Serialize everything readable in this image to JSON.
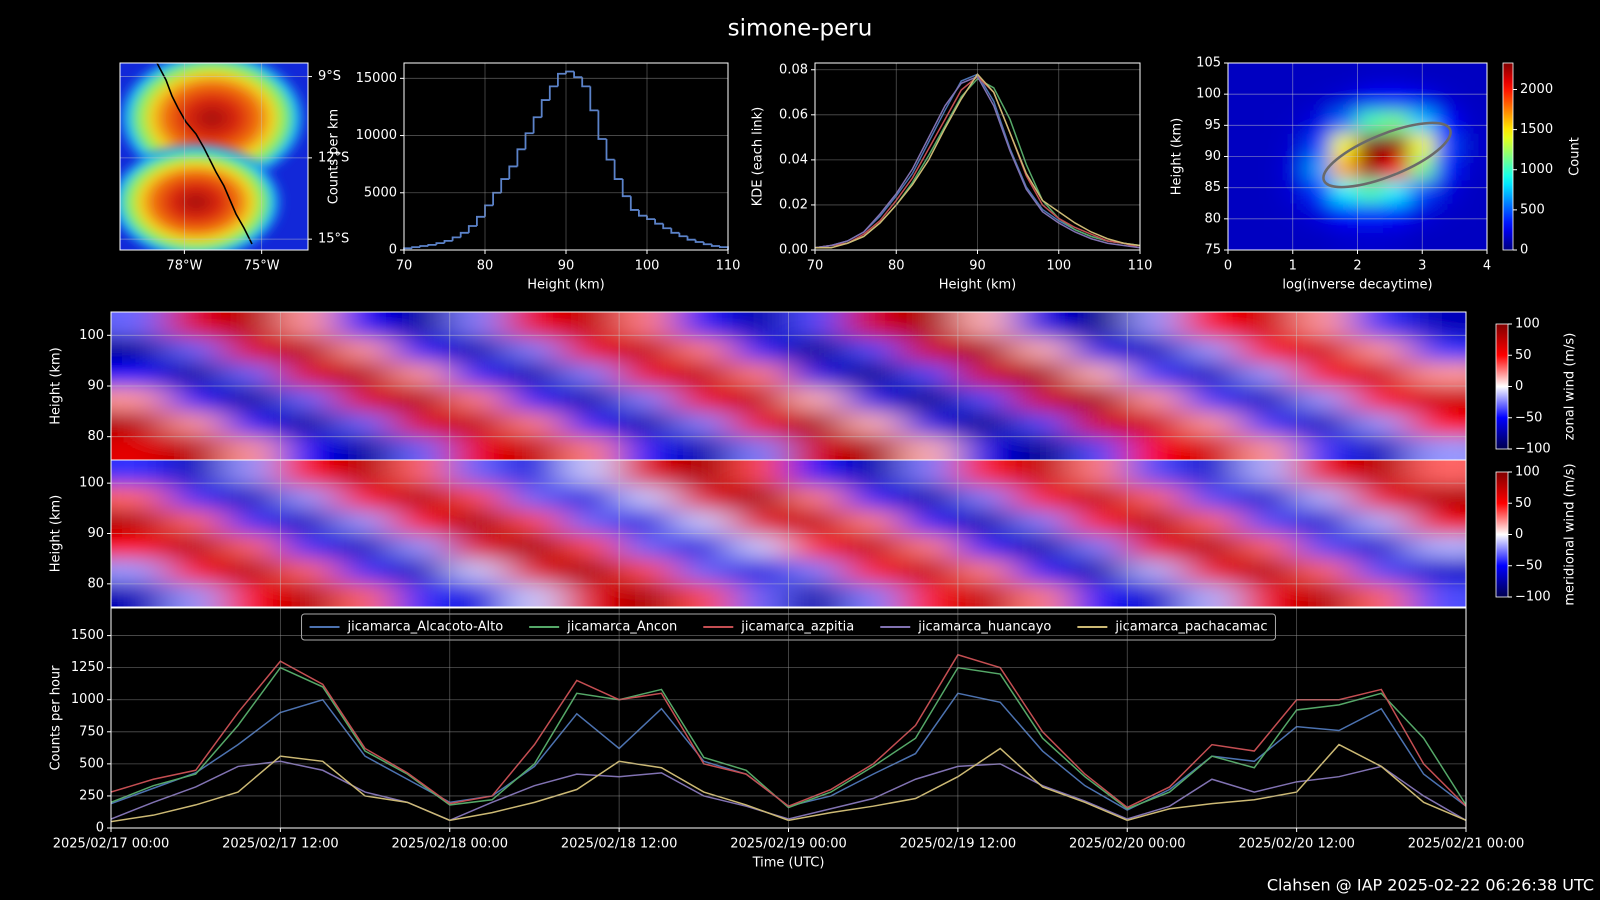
{
  "title": "simone-peru",
  "footer": "Clahsen @ IAP 2025-02-22 06:26:38 UTC",
  "chart_data": [
    {
      "type": "map",
      "xlim": [
        -80.5,
        -73.2
      ],
      "ylim": [
        -15.4,
        -8.5
      ],
      "xticks": [
        {
          "value": -78,
          "label": "78°W"
        },
        {
          "value": -75,
          "label": "75°W"
        }
      ],
      "yticks": [
        {
          "value": -15,
          "label": "15°S"
        },
        {
          "value": -12,
          "label": "12°S"
        },
        {
          "value": -9,
          "label": "9°S"
        }
      ],
      "grid": true
    },
    {
      "type": "histogram",
      "xlabel": "Height (km)",
      "ylabel": "Counts per km",
      "color": "#5b82c9",
      "bins": [
        70,
        71,
        72,
        73,
        74,
        75,
        76,
        77,
        78,
        79,
        80,
        81,
        82,
        83,
        84,
        85,
        86,
        87,
        88,
        89,
        90,
        91,
        92,
        93,
        94,
        95,
        96,
        97,
        98,
        99,
        100,
        101,
        102,
        103,
        104,
        105,
        106,
        107,
        108,
        109,
        110
      ],
      "counts": [
        150,
        250,
        350,
        450,
        600,
        800,
        1100,
        1500,
        2100,
        2900,
        3900,
        5000,
        6200,
        7300,
        8800,
        10200,
        11600,
        13100,
        14300,
        15400,
        15600,
        15100,
        14300,
        12200,
        9700,
        7900,
        6200,
        4700,
        3500,
        3000,
        2700,
        2300,
        1900,
        1500,
        1200,
        900,
        700,
        500,
        350,
        250
      ],
      "xlim": [
        70,
        110
      ],
      "ylim": [
        0,
        16340
      ],
      "xticks": [
        70,
        80,
        90,
        100,
        110
      ],
      "yticks": [
        0,
        5000,
        10000,
        15000
      ],
      "grid": true
    },
    {
      "type": "line",
      "xlabel": "Height (km)",
      "ylabel": "KDE (each link)",
      "x": [
        70,
        72,
        74,
        76,
        78,
        80,
        82,
        84,
        86,
        88,
        90,
        92,
        94,
        96,
        98,
        100,
        102,
        104,
        106,
        108,
        110
      ],
      "series": [
        {
          "color": "#4c72b0",
          "values": [
            0.001,
            0.002,
            0.004,
            0.008,
            0.015,
            0.024,
            0.034,
            0.048,
            0.062,
            0.075,
            0.078,
            0.066,
            0.045,
            0.028,
            0.018,
            0.013,
            0.009,
            0.006,
            0.004,
            0.003,
            0.002
          ]
        },
        {
          "color": "#55a868",
          "values": [
            0.001,
            0.002,
            0.003,
            0.006,
            0.012,
            0.02,
            0.03,
            0.042,
            0.055,
            0.068,
            0.076,
            0.072,
            0.058,
            0.038,
            0.022,
            0.014,
            0.009,
            0.006,
            0.004,
            0.003,
            0.002
          ]
        },
        {
          "color": "#c44e52",
          "values": [
            0.001,
            0.002,
            0.003,
            0.007,
            0.013,
            0.022,
            0.032,
            0.045,
            0.058,
            0.071,
            0.077,
            0.07,
            0.052,
            0.033,
            0.02,
            0.014,
            0.01,
            0.007,
            0.004,
            0.003,
            0.001
          ]
        },
        {
          "color": "#8172b2",
          "values": [
            0.001,
            0.002,
            0.004,
            0.008,
            0.016,
            0.025,
            0.036,
            0.05,
            0.064,
            0.074,
            0.077,
            0.064,
            0.044,
            0.027,
            0.017,
            0.012,
            0.008,
            0.005,
            0.003,
            0.002,
            0.001
          ]
        },
        {
          "color": "#ccb974",
          "values": [
            0.001,
            0.001,
            0.003,
            0.006,
            0.012,
            0.02,
            0.029,
            0.04,
            0.054,
            0.067,
            0.078,
            0.07,
            0.052,
            0.034,
            0.022,
            0.017,
            0.012,
            0.008,
            0.005,
            0.003,
            0.002
          ]
        }
      ],
      "xlim": [
        70,
        110
      ],
      "ylim": [
        0,
        0.083
      ],
      "xticks": [
        70,
        80,
        90,
        100,
        110
      ],
      "yticks": [
        {
          "value": 0,
          "label": "0.00"
        },
        {
          "value": 0.02,
          "label": "0.02"
        },
        {
          "value": 0.04,
          "label": "0.04"
        },
        {
          "value": 0.06,
          "label": "0.06"
        },
        {
          "value": 0.08,
          "label": "0.08"
        }
      ],
      "grid": true
    },
    {
      "type": "heatmap",
      "xlabel": "log(inverse decaytime)",
      "ylabel": "Height (km)",
      "clabel": "Count",
      "cmap": "jet",
      "z": [
        [
          150,
          150,
          150,
          150,
          170,
          180,
          170,
          150,
          150,
          150
        ],
        [
          150,
          150,
          160,
          210,
          300,
          350,
          300,
          210,
          160,
          150
        ],
        [
          150,
          150,
          190,
          400,
          850,
          1050,
          850,
          450,
          210,
          150
        ],
        [
          150,
          150,
          210,
          650,
          1650,
          2250,
          2050,
          1150,
          350,
          160
        ],
        [
          150,
          150,
          180,
          450,
          1450,
          2330,
          2300,
          1450,
          450,
          170
        ],
        [
          150,
          150,
          160,
          230,
          550,
          1050,
          1150,
          750,
          300,
          160
        ],
        [
          150,
          150,
          150,
          160,
          200,
          270,
          300,
          250,
          180,
          150
        ],
        [
          150,
          150,
          150,
          150,
          150,
          160,
          160,
          150,
          150,
          150
        ]
      ],
      "xlim": [
        0,
        4
      ],
      "ylim": [
        75,
        105
      ],
      "xticks": [
        0,
        1,
        2,
        3,
        4
      ],
      "yticks": [
        75,
        80,
        85,
        90,
        95,
        100,
        105
      ],
      "clim": [
        0,
        2330
      ],
      "cticks": [
        0,
        500,
        1000,
        1500,
        2000
      ],
      "grid": true
    },
    {
      "type": "heatmap",
      "ylabel": "Height (km)",
      "clabel": "zonal wind (m/s)",
      "cmap": "seismic",
      "z": [
        [
          60,
          80,
          20,
          -50,
          -80,
          -30,
          55,
          75,
          25,
          -45,
          -75,
          -25,
          65,
          85,
          15,
          -55,
          -85,
          -35,
          50,
          70,
          20,
          -40,
          -70,
          -20
        ],
        [
          80,
          20,
          -50,
          -80,
          -30,
          60,
          75,
          25,
          -45,
          -75,
          -25,
          55,
          85,
          15,
          -55,
          -85,
          -35,
          65,
          70,
          20,
          -40,
          -70,
          -20,
          50
        ],
        [
          20,
          -50,
          -80,
          -30,
          60,
          80,
          25,
          -45,
          -75,
          -25,
          55,
          75,
          15,
          -55,
          -85,
          -35,
          65,
          85,
          20,
          -40,
          -70,
          -20,
          50,
          70
        ],
        [
          -50,
          -80,
          -30,
          60,
          80,
          20,
          -45,
          -75,
          -25,
          55,
          75,
          25,
          -55,
          -85,
          -35,
          65,
          85,
          15,
          -40,
          -70,
          -20,
          50,
          70,
          20
        ],
        [
          -80,
          -30,
          60,
          80,
          20,
          -50,
          -75,
          -25,
          55,
          75,
          25,
          -45,
          -85,
          -35,
          65,
          85,
          15,
          -55,
          -70,
          -20,
          50,
          70,
          20,
          -40
        ],
        [
          -30,
          60,
          80,
          20,
          -50,
          -80,
          -25,
          55,
          75,
          25,
          -45,
          -75,
          -35,
          65,
          85,
          15,
          -55,
          -85,
          -20,
          50,
          70,
          20,
          -40,
          -70
        ]
      ],
      "xlim": [
        "2025/02/17 00:00",
        "2025/02/21 00:00"
      ],
      "ylim": [
        75.4,
        104.6
      ],
      "yticks": [
        80,
        90,
        100
      ],
      "clim": [
        -100,
        100
      ],
      "cticks": [
        {
          "value": -100,
          "label": "−100"
        },
        {
          "value": -50,
          "label": "−50"
        },
        0,
        50,
        100
      ],
      "grid": true
    },
    {
      "type": "heatmap",
      "ylabel": "Height (km)",
      "clabel": "meridional wind (m/s)",
      "cmap": "seismic",
      "z": [
        [
          -70,
          -20,
          50,
          80,
          30,
          -40,
          -60,
          -10,
          60,
          85,
          35,
          -30,
          -75,
          -25,
          45,
          75,
          25,
          -45,
          -65,
          -15,
          55,
          80,
          30,
          -35
        ],
        [
          -20,
          50,
          80,
          30,
          -40,
          -70,
          -10,
          60,
          85,
          35,
          -30,
          -60,
          -25,
          45,
          75,
          25,
          -45,
          -75,
          -15,
          55,
          80,
          30,
          -35,
          -65
        ],
        [
          50,
          80,
          30,
          -40,
          -70,
          -20,
          60,
          85,
          35,
          -30,
          -60,
          -10,
          45,
          75,
          25,
          -45,
          -75,
          -25,
          55,
          80,
          30,
          -35,
          -65,
          -15
        ],
        [
          80,
          30,
          -40,
          -70,
          -20,
          50,
          85,
          35,
          -30,
          -60,
          -10,
          60,
          75,
          25,
          -45,
          -75,
          -25,
          45,
          80,
          30,
          -35,
          -65,
          -15,
          55
        ],
        [
          30,
          -40,
          -70,
          -20,
          50,
          80,
          35,
          -30,
          -60,
          -10,
          60,
          85,
          25,
          -45,
          -75,
          -25,
          45,
          75,
          30,
          -35,
          -65,
          -15,
          55,
          80
        ],
        [
          -40,
          -70,
          -20,
          50,
          80,
          30,
          -30,
          -60,
          -10,
          60,
          85,
          35,
          -45,
          -75,
          -25,
          45,
          75,
          25,
          -35,
          -65,
          -15,
          55,
          80,
          30
        ]
      ],
      "xlim": [
        "2025/02/17 00:00",
        "2025/02/21 00:00"
      ],
      "ylim": [
        75.4,
        104.6
      ],
      "yticks": [
        80,
        90,
        100
      ],
      "clim": [
        -100,
        100
      ],
      "cticks": [
        {
          "value": -100,
          "label": "−100"
        },
        {
          "value": -50,
          "label": "−50"
        },
        0,
        50,
        100
      ],
      "grid": true
    },
    {
      "type": "line",
      "xlabel": "Time (UTC)",
      "ylabel": "Counts per hour",
      "legend": "upper center",
      "x": [
        "2025/02/17 00:00",
        "2025/02/17 03:00",
        "2025/02/17 06:00",
        "2025/02/17 09:00",
        "2025/02/17 12:00",
        "2025/02/17 15:00",
        "2025/02/17 18:00",
        "2025/02/17 21:00",
        "2025/02/18 00:00",
        "2025/02/18 03:00",
        "2025/02/18 06:00",
        "2025/02/18 09:00",
        "2025/02/18 12:00",
        "2025/02/18 15:00",
        "2025/02/18 18:00",
        "2025/02/18 21:00",
        "2025/02/19 00:00",
        "2025/02/19 03:00",
        "2025/02/19 06:00",
        "2025/02/19 09:00",
        "2025/02/19 12:00",
        "2025/02/19 15:00",
        "2025/02/19 18:00",
        "2025/02/19 21:00",
        "2025/02/20 00:00",
        "2025/02/20 03:00",
        "2025/02/20 06:00",
        "2025/02/20 09:00",
        "2025/02/20 12:00",
        "2025/02/20 15:00",
        "2025/02/20 18:00",
        "2025/02/20 21:00",
        "2025/02/21 00:00"
      ],
      "series": [
        {
          "name": "jicamarca_Alcacoto-Alto",
          "color": "#4c72b0",
          "values": [
            190,
            310,
            430,
            650,
            900,
            1000,
            560,
            380,
            200,
            250,
            480,
            890,
            620,
            930,
            520,
            420,
            170,
            250,
            420,
            580,
            1050,
            980,
            600,
            330,
            140,
            300,
            560,
            520,
            790,
            760,
            930,
            420,
            170
          ]
        },
        {
          "name": "jicamarca_Ancon",
          "color": "#55a868",
          "values": [
            200,
            330,
            420,
            800,
            1250,
            1100,
            600,
            420,
            180,
            220,
            500,
            1050,
            1000,
            1080,
            550,
            450,
            160,
            280,
            480,
            700,
            1250,
            1200,
            700,
            400,
            150,
            280,
            560,
            470,
            920,
            960,
            1050,
            700,
            180
          ]
        },
        {
          "name": "jicamarca_azpitia",
          "color": "#c44e52",
          "values": [
            280,
            380,
            450,
            900,
            1300,
            1120,
            620,
            430,
            190,
            250,
            650,
            1150,
            1000,
            1050,
            500,
            420,
            170,
            300,
            500,
            800,
            1350,
            1250,
            750,
            420,
            160,
            320,
            650,
            600,
            1000,
            1000,
            1080,
            500,
            170
          ]
        },
        {
          "name": "jicamarca_huancayo",
          "color": "#8172b2",
          "values": [
            70,
            200,
            320,
            480,
            520,
            450,
            280,
            200,
            60,
            200,
            330,
            420,
            400,
            430,
            250,
            170,
            70,
            150,
            230,
            380,
            480,
            500,
            330,
            210,
            70,
            170,
            380,
            280,
            360,
            400,
            480,
            250,
            60
          ]
        },
        {
          "name": "jicamarca_pachacamac",
          "color": "#ccb974",
          "values": [
            50,
            100,
            180,
            280,
            560,
            520,
            250,
            200,
            60,
            120,
            200,
            300,
            520,
            470,
            280,
            180,
            60,
            120,
            170,
            230,
            400,
            620,
            320,
            200,
            60,
            150,
            190,
            220,
            280,
            650,
            480,
            200,
            60
          ]
        }
      ],
      "xlim": [
        "2025/02/17 00:00",
        "2025/02/21 00:00"
      ],
      "ylim": [
        0,
        1715
      ],
      "xticks": [
        "2025/02/17 00:00",
        "2025/02/17 12:00",
        "2025/02/18 00:00",
        "2025/02/18 12:00",
        "2025/02/19 00:00",
        "2025/02/19 12:00",
        "2025/02/20 00:00",
        "2025/02/20 12:00",
        "2025/02/21 00:00"
      ],
      "yticks": [
        0,
        250,
        500,
        750,
        1000,
        1250,
        1500
      ],
      "grid": true
    }
  ]
}
